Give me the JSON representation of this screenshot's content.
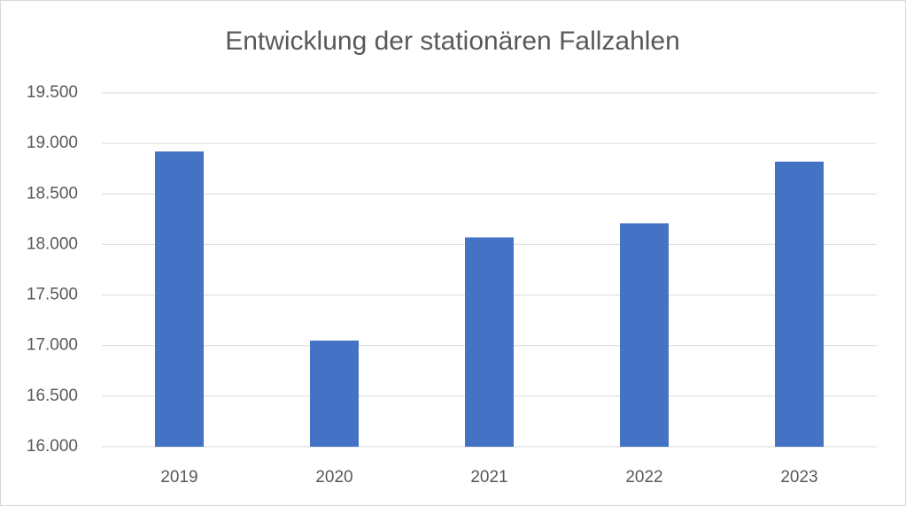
{
  "chart_data": {
    "type": "bar",
    "title": "Entwicklung der stationären Fallzahlen",
    "categories": [
      "2019",
      "2020",
      "2021",
      "2022",
      "2023"
    ],
    "values": [
      18920,
      17050,
      18070,
      18210,
      18820
    ],
    "color": "#4472c4",
    "ylim": [
      16000,
      19500
    ],
    "yticks": [
      {
        "value": 16000,
        "label": "16.000"
      },
      {
        "value": 16500,
        "label": "16.500"
      },
      {
        "value": 17000,
        "label": "17.000"
      },
      {
        "value": 17500,
        "label": "17.500"
      },
      {
        "value": 18000,
        "label": "18.000"
      },
      {
        "value": 18500,
        "label": "18.500"
      },
      {
        "value": 19000,
        "label": "19.000"
      },
      {
        "value": 19500,
        "label": "19.500"
      }
    ],
    "grid": true
  }
}
